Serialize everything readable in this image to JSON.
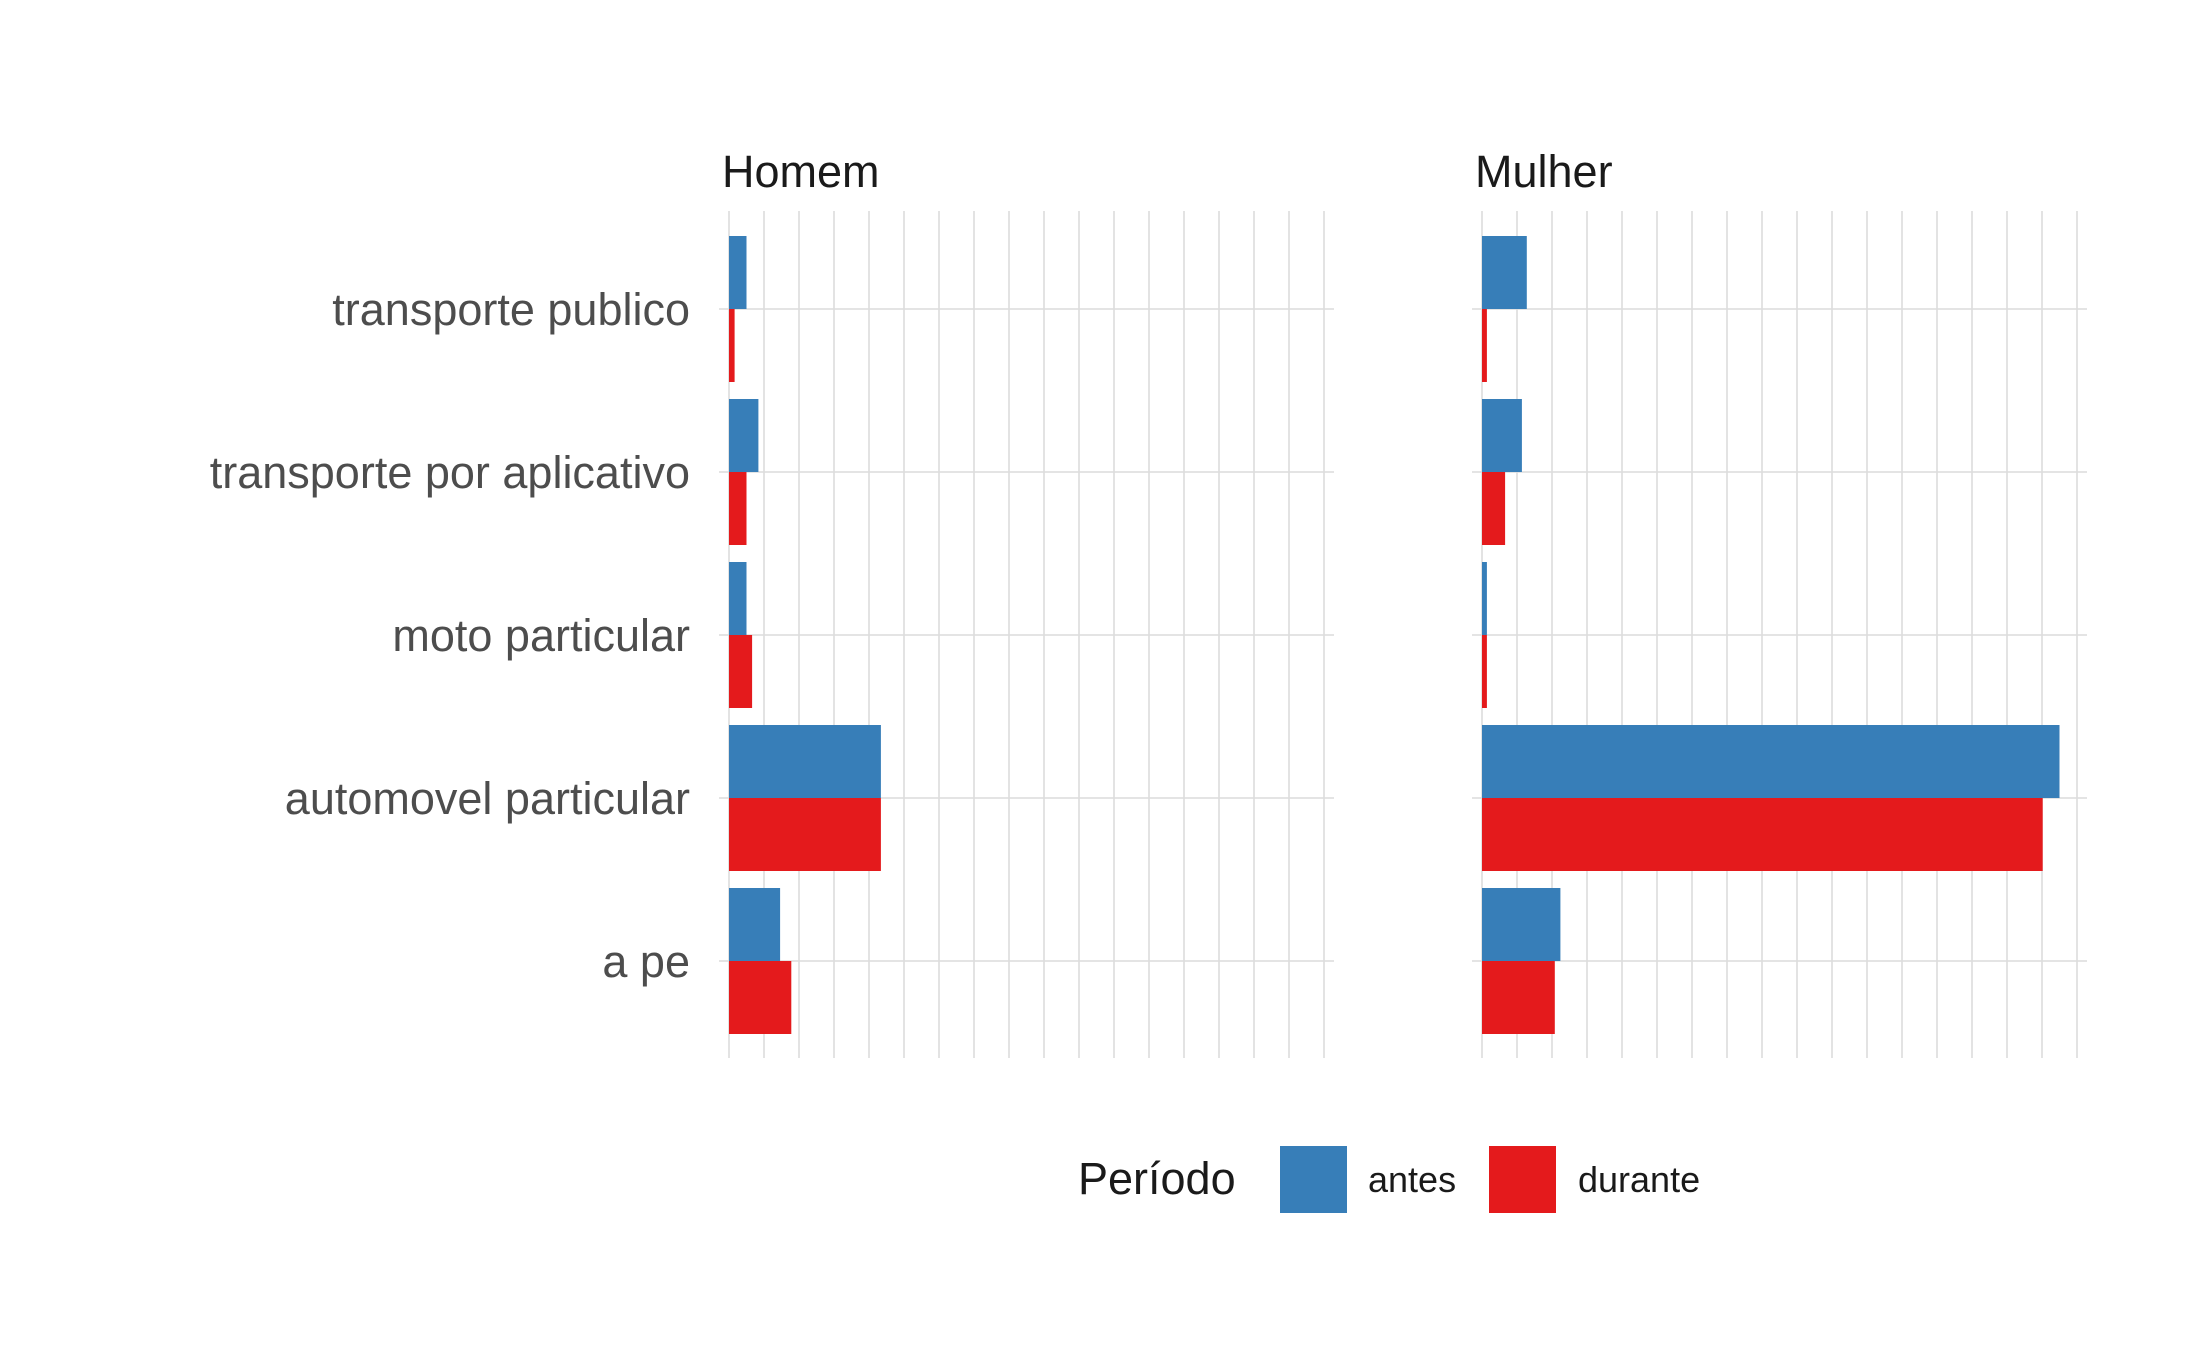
{
  "chart_data": {
    "type": "bar",
    "orientation": "horizontal",
    "facets": [
      "Homem",
      "Mulher"
    ],
    "categories": [
      "transporte publico",
      "transporte por aplicativo",
      "moto particular",
      "automovel particular",
      "a pe"
    ],
    "legend": {
      "title": "Período",
      "position": "bottom",
      "entries": [
        {
          "name": "antes",
          "color": "#377EB8"
        },
        {
          "name": "durante",
          "color": "#E41A1C"
        }
      ]
    },
    "xlim": [
      0,
      8.6
    ],
    "grid": true,
    "panels": [
      {
        "title": "Homem",
        "series": [
          {
            "name": "antes",
            "values": [
              0.25,
              0.42,
              0.25,
              2.17,
              0.73
            ]
          },
          {
            "name": "durante",
            "values": [
              0.08,
              0.25,
              0.33,
              2.17,
              0.89
            ]
          }
        ]
      },
      {
        "title": "Mulher",
        "series": [
          {
            "name": "antes",
            "values": [
              0.64,
              0.57,
              0.07,
              8.25,
              1.12
            ]
          },
          {
            "name": "durante",
            "values": [
              0.07,
              0.33,
              0.07,
              8.01,
              1.04
            ]
          }
        ]
      }
    ]
  }
}
